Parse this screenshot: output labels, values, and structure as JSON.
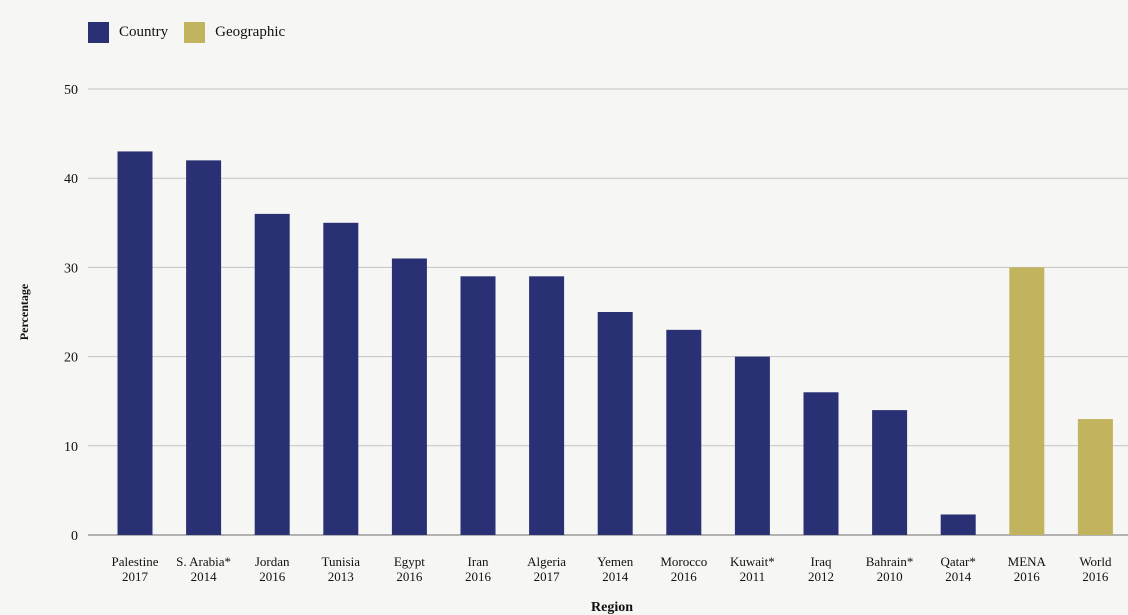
{
  "chart_data": {
    "type": "bar",
    "xlabel": "Region",
    "ylabel": "Percentage",
    "ylim": [
      0,
      50
    ],
    "yticks": [
      0,
      10,
      20,
      30,
      40,
      50
    ],
    "grid": true,
    "legend_position": "top-left",
    "series": [
      {
        "name": "Country",
        "color": "#293073"
      },
      {
        "name": "Geographic",
        "color": "#c2b35f"
      }
    ],
    "bars": [
      {
        "label": "Palestine",
        "year": "2017",
        "value": 43,
        "series": "Country"
      },
      {
        "label": "S. Arabia*",
        "year": "2014",
        "value": 42,
        "series": "Country"
      },
      {
        "label": "Jordan",
        "year": "2016",
        "value": 36,
        "series": "Country"
      },
      {
        "label": "Tunisia",
        "year": "2013",
        "value": 35,
        "series": "Country"
      },
      {
        "label": "Egypt",
        "year": "2016",
        "value": 31,
        "series": "Country"
      },
      {
        "label": "Iran",
        "year": "2016",
        "value": 29,
        "series": "Country"
      },
      {
        "label": "Algeria",
        "year": "2017",
        "value": 29,
        "series": "Country"
      },
      {
        "label": "Yemen",
        "year": "2014",
        "value": 25,
        "series": "Country"
      },
      {
        "label": "Morocco",
        "year": "2016",
        "value": 23,
        "series": "Country"
      },
      {
        "label": "Kuwait*",
        "year": "2011",
        "value": 20,
        "series": "Country"
      },
      {
        "label": "Iraq",
        "year": "2012",
        "value": 16,
        "series": "Country"
      },
      {
        "label": "Bahrain*",
        "year": "2010",
        "value": 14,
        "series": "Country"
      },
      {
        "label": "Qatar*",
        "year": "2014",
        "value": 2.3,
        "series": "Country"
      },
      {
        "label": "MENA",
        "year": "2016",
        "value": 30,
        "series": "Geographic"
      },
      {
        "label": "World",
        "year": "2016",
        "value": 13,
        "series": "Geographic"
      }
    ]
  }
}
